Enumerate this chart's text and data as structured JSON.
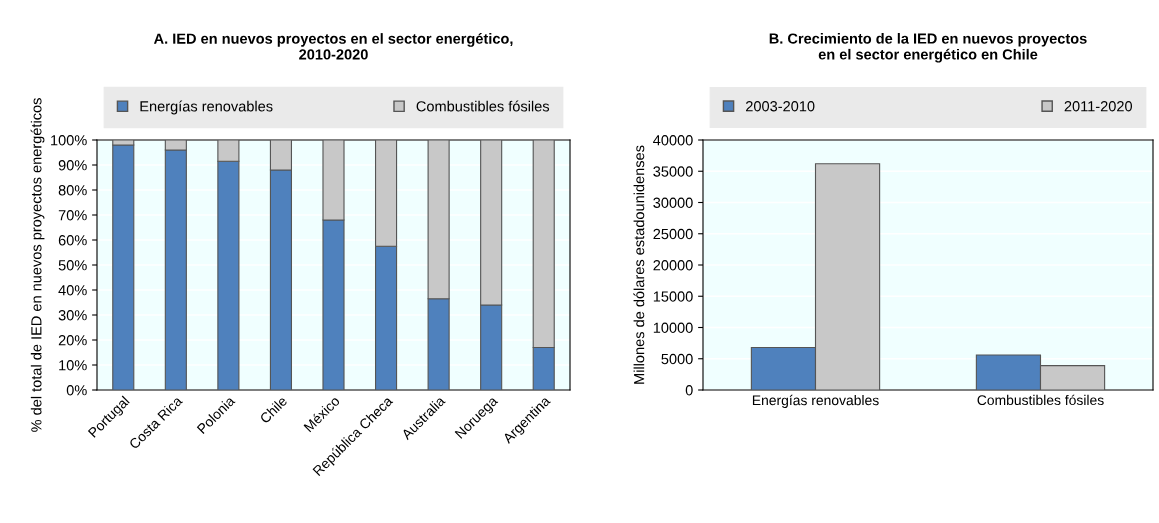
{
  "chart_data": [
    {
      "type": "bar",
      "title": "A. IED en nuevos proyectos en el sector energético,\n2010-2020",
      "ylabel": "% del total de IED en nuevos proyectos energéticos",
      "stacked": true,
      "categories": [
        "Portugal",
        "Costa Rica",
        "Polonia",
        "Chile",
        "México",
        "República Checa",
        "Australia",
        "Noruega",
        "Argentina"
      ],
      "series": [
        {
          "name": "Energías renovables",
          "color": "#4f81bd",
          "values": [
            98,
            96,
            91.5,
            88,
            68,
            57.5,
            36.5,
            34,
            17
          ]
        },
        {
          "name": "Combustibles fósiles",
          "color": "#c8c8c8",
          "values": [
            2,
            4,
            8.5,
            12,
            32,
            42.5,
            63.5,
            66,
            83
          ]
        }
      ],
      "ylim": [
        0,
        100
      ],
      "yticks": [
        {
          "value": 0,
          "label": "0%"
        },
        {
          "value": 10,
          "label": "10%"
        },
        {
          "value": 20,
          "label": "20%"
        },
        {
          "value": 30,
          "label": "30%"
        },
        {
          "value": 40,
          "label": "40%"
        },
        {
          "value": 50,
          "label": "50%"
        },
        {
          "value": 60,
          "label": "60%"
        },
        {
          "value": 70,
          "label": "70%"
        },
        {
          "value": 80,
          "label": "80%"
        },
        {
          "value": 90,
          "label": "90%"
        },
        {
          "value": 100,
          "label": "100%"
        }
      ],
      "grid": "y",
      "legend": "top"
    },
    {
      "type": "bar",
      "title": "B. Crecimiento de la IED en nuevos proyectos\nen el sector energético en Chile",
      "ylabel": "Millones de dólares estadounidenses",
      "categories": [
        "Energías renovables",
        "Combustibles fósiles"
      ],
      "series": [
        {
          "name": "2003-2010",
          "color": "#4f81bd",
          "values": [
            6800,
            5600
          ]
        },
        {
          "name": "2011-2020",
          "color": "#c8c8c8",
          "values": [
            36200,
            3900
          ]
        }
      ],
      "ylim": [
        0,
        40000
      ],
      "yticks": [
        0,
        5000,
        10000,
        15000,
        20000,
        25000,
        30000,
        35000,
        40000
      ],
      "grid": "y",
      "legend": "top"
    }
  ]
}
